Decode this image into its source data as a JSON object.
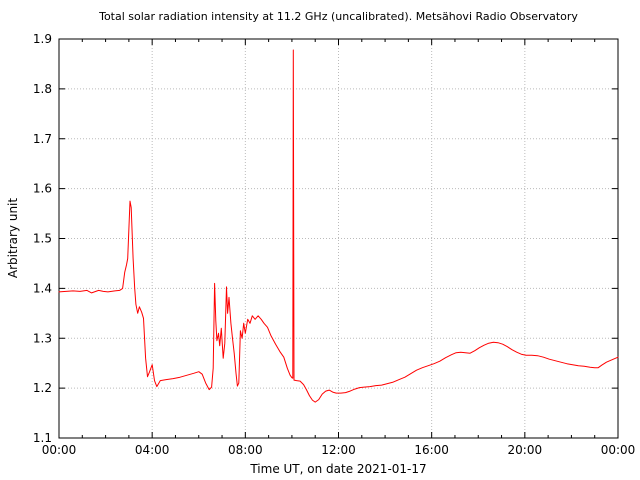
{
  "chart_data": {
    "type": "line",
    "title": "Total solar radiation intensity at 11.2 GHz (uncalibrated). Metsähovi Radio Observatory",
    "xlabel": "Time UT, on date 2021-01-17",
    "ylabel": "Arbitrary unit",
    "xlim": [
      0,
      24
    ],
    "ylim": [
      1.1,
      1.9
    ],
    "grid": true,
    "legend_position": "none",
    "x_major_ticks": [
      0,
      4,
      8,
      12,
      16,
      20,
      24
    ],
    "x_tick_labels": [
      "00:00",
      "04:00",
      "08:00",
      "12:00",
      "16:00",
      "20:00",
      "00:00"
    ],
    "x_minor_tick_step_hours": 1,
    "y_ticks": [
      1.1,
      1.2,
      1.3,
      1.4,
      1.5,
      1.6,
      1.7,
      1.8,
      1.9
    ],
    "y_tick_labels": [
      "1.1",
      "1.2",
      "1.3",
      "1.4",
      "1.5",
      "1.6",
      "1.7",
      "1.8",
      "1.9"
    ],
    "line_color": "#ff0000",
    "axis_color": "#000000",
    "grid_color": "#bbbbbb",
    "background_color": "#ffffff",
    "key_features": {
      "baseline_start_level": 1.394,
      "morning_peak_time_ut": "03:05",
      "morning_peak_value": 1.575,
      "narrow_flare_spike_time_ut": "10:04",
      "narrow_flare_spike_value": 1.88,
      "daily_minimum_time_ut": "11:00",
      "daily_minimum_value": 1.17,
      "evening_bump_time_ut": "18:40",
      "evening_bump_value": 1.29,
      "end_level": 1.26
    },
    "series": [
      {
        "name": "intensity",
        "points": [
          [
            0.0,
            1.393
          ],
          [
            0.3,
            1.394
          ],
          [
            0.6,
            1.395
          ],
          [
            0.9,
            1.394
          ],
          [
            1.2,
            1.396
          ],
          [
            1.4,
            1.391
          ],
          [
            1.7,
            1.396
          ],
          [
            1.9,
            1.394
          ],
          [
            2.1,
            1.393
          ],
          [
            2.4,
            1.395
          ],
          [
            2.6,
            1.396
          ],
          [
            2.73,
            1.4
          ],
          [
            2.82,
            1.432
          ],
          [
            2.9,
            1.447
          ],
          [
            2.95,
            1.46
          ],
          [
            3.0,
            1.52
          ],
          [
            3.05,
            1.575
          ],
          [
            3.1,
            1.562
          ],
          [
            3.18,
            1.46
          ],
          [
            3.25,
            1.4
          ],
          [
            3.3,
            1.368
          ],
          [
            3.38,
            1.35
          ],
          [
            3.45,
            1.363
          ],
          [
            3.55,
            1.352
          ],
          [
            3.63,
            1.34
          ],
          [
            3.72,
            1.26
          ],
          [
            3.8,
            1.223
          ],
          [
            3.88,
            1.232
          ],
          [
            4.0,
            1.247
          ],
          [
            4.1,
            1.215
          ],
          [
            4.2,
            1.203
          ],
          [
            4.35,
            1.215
          ],
          [
            4.6,
            1.217
          ],
          [
            4.9,
            1.219
          ],
          [
            5.2,
            1.222
          ],
          [
            5.5,
            1.226
          ],
          [
            5.8,
            1.23
          ],
          [
            6.0,
            1.233
          ],
          [
            6.15,
            1.228
          ],
          [
            6.3,
            1.21
          ],
          [
            6.45,
            1.197
          ],
          [
            6.55,
            1.202
          ],
          [
            6.62,
            1.24
          ],
          [
            6.68,
            1.41
          ],
          [
            6.73,
            1.335
          ],
          [
            6.78,
            1.295
          ],
          [
            6.85,
            1.31
          ],
          [
            6.9,
            1.285
          ],
          [
            6.97,
            1.32
          ],
          [
            7.05,
            1.26
          ],
          [
            7.12,
            1.29
          ],
          [
            7.19,
            1.403
          ],
          [
            7.24,
            1.35
          ],
          [
            7.3,
            1.382
          ],
          [
            7.38,
            1.33
          ],
          [
            7.45,
            1.3
          ],
          [
            7.52,
            1.27
          ],
          [
            7.6,
            1.23
          ],
          [
            7.66,
            1.204
          ],
          [
            7.72,
            1.21
          ],
          [
            7.79,
            1.315
          ],
          [
            7.86,
            1.3
          ],
          [
            7.93,
            1.33
          ],
          [
            8.0,
            1.31
          ],
          [
            8.1,
            1.338
          ],
          [
            8.2,
            1.33
          ],
          [
            8.3,
            1.345
          ],
          [
            8.42,
            1.338
          ],
          [
            8.55,
            1.345
          ],
          [
            8.68,
            1.338
          ],
          [
            8.8,
            1.33
          ],
          [
            8.95,
            1.322
          ],
          [
            9.1,
            1.305
          ],
          [
            9.3,
            1.288
          ],
          [
            9.5,
            1.272
          ],
          [
            9.65,
            1.262
          ],
          [
            9.8,
            1.24
          ],
          [
            9.92,
            1.226
          ],
          [
            10.0,
            1.221
          ],
          [
            10.04,
            1.22
          ],
          [
            10.06,
            1.878
          ],
          [
            10.09,
            1.216
          ],
          [
            10.2,
            1.215
          ],
          [
            10.35,
            1.214
          ],
          [
            10.5,
            1.207
          ],
          [
            10.62,
            1.197
          ],
          [
            10.75,
            1.185
          ],
          [
            10.88,
            1.176
          ],
          [
            11.0,
            1.172
          ],
          [
            11.15,
            1.177
          ],
          [
            11.3,
            1.188
          ],
          [
            11.45,
            1.194
          ],
          [
            11.6,
            1.196
          ],
          [
            11.75,
            1.192
          ],
          [
            11.9,
            1.19
          ],
          [
            12.1,
            1.19
          ],
          [
            12.3,
            1.191
          ],
          [
            12.5,
            1.194
          ],
          [
            12.7,
            1.198
          ],
          [
            12.9,
            1.201
          ],
          [
            13.1,
            1.202
          ],
          [
            13.35,
            1.203
          ],
          [
            13.6,
            1.205
          ],
          [
            13.85,
            1.206
          ],
          [
            14.1,
            1.209
          ],
          [
            14.35,
            1.212
          ],
          [
            14.6,
            1.217
          ],
          [
            14.85,
            1.222
          ],
          [
            15.1,
            1.229
          ],
          [
            15.35,
            1.236
          ],
          [
            15.6,
            1.241
          ],
          [
            15.85,
            1.245
          ],
          [
            16.1,
            1.249
          ],
          [
            16.35,
            1.254
          ],
          [
            16.6,
            1.261
          ],
          [
            16.85,
            1.267
          ],
          [
            17.05,
            1.271
          ],
          [
            17.25,
            1.272
          ],
          [
            17.45,
            1.271
          ],
          [
            17.65,
            1.27
          ],
          [
            17.85,
            1.275
          ],
          [
            18.05,
            1.281
          ],
          [
            18.25,
            1.286
          ],
          [
            18.45,
            1.29
          ],
          [
            18.65,
            1.292
          ],
          [
            18.85,
            1.291
          ],
          [
            19.05,
            1.288
          ],
          [
            19.25,
            1.283
          ],
          [
            19.45,
            1.277
          ],
          [
            19.65,
            1.272
          ],
          [
            19.85,
            1.268
          ],
          [
            20.05,
            1.266
          ],
          [
            20.3,
            1.266
          ],
          [
            20.55,
            1.265
          ],
          [
            20.8,
            1.262
          ],
          [
            21.05,
            1.258
          ],
          [
            21.3,
            1.255
          ],
          [
            21.55,
            1.252
          ],
          [
            21.8,
            1.249
          ],
          [
            22.05,
            1.247
          ],
          [
            22.3,
            1.245
          ],
          [
            22.55,
            1.244
          ],
          [
            22.8,
            1.242
          ],
          [
            23.0,
            1.241
          ],
          [
            23.15,
            1.241
          ],
          [
            23.3,
            1.246
          ],
          [
            23.5,
            1.252
          ],
          [
            23.7,
            1.256
          ],
          [
            23.85,
            1.259
          ],
          [
            24.0,
            1.262
          ]
        ]
      }
    ]
  }
}
